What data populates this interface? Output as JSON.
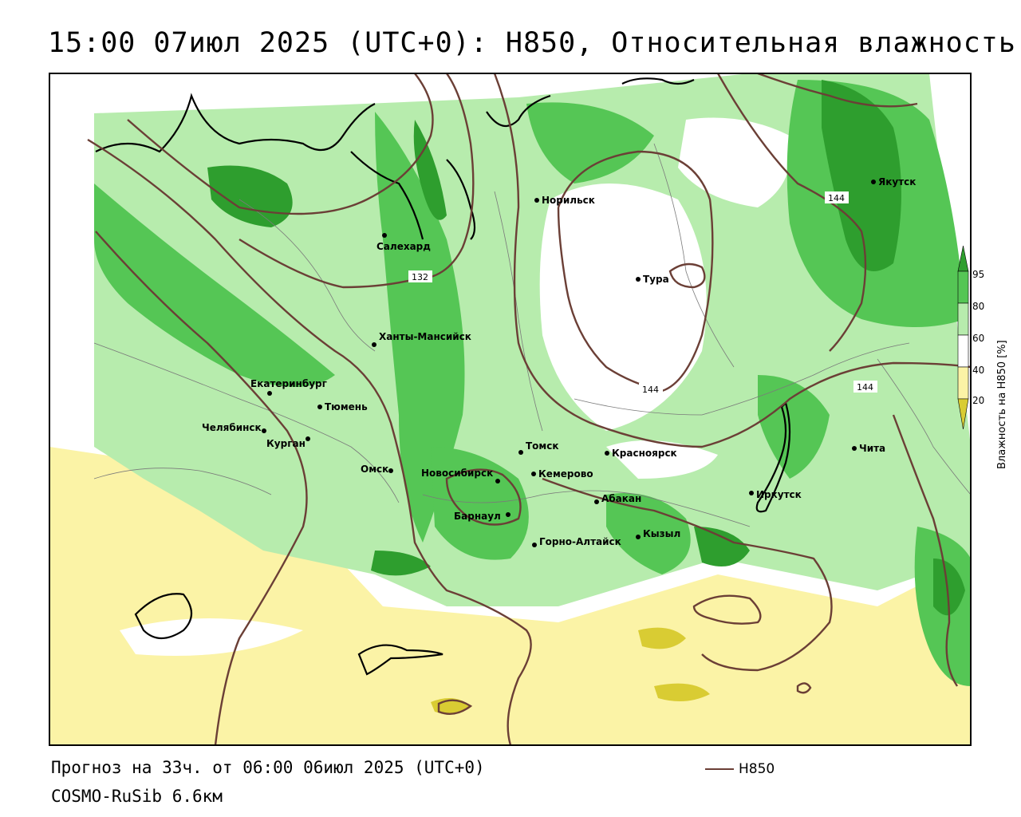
{
  "title": "15:00 07июл 2025 (UTC+0): H850, Относительная влажность",
  "footer": {
    "forecast": "Прогноз на 33ч. от 06:00 06июл 2025 (UTC+0)",
    "model": "COSMO-RuSib 6.6км"
  },
  "legend": {
    "line_label": "H850",
    "line_color": "#6b3f36"
  },
  "colorbar": {
    "title": "Влажность на H850 [%]",
    "ticks": [
      "95",
      "80",
      "60",
      "40",
      "20"
    ],
    "colors": {
      "c95": "#2e9e2e",
      "c80": "#55c655",
      "c60": "#b7ecad",
      "c40": "#ffffff",
      "c20": "#fbf3a6",
      "cdry": "#d9cc33"
    }
  },
  "contour_labels": [
    "132",
    "144",
    "144",
    "144"
  ],
  "cities": [
    {
      "id": "salekhard",
      "name": "Салехард"
    },
    {
      "id": "norilsk",
      "name": "Норильск"
    },
    {
      "id": "yakutsk",
      "name": "Якутск"
    },
    {
      "id": "tura",
      "name": "Тура"
    },
    {
      "id": "khanty",
      "name": "Ханты-Мансийск"
    },
    {
      "id": "ekb",
      "name": "Екатеринбург"
    },
    {
      "id": "tyumen",
      "name": "Тюмень"
    },
    {
      "id": "chelyabinsk",
      "name": "Челябинск"
    },
    {
      "id": "kurgan",
      "name": "Курган"
    },
    {
      "id": "omsk",
      "name": "Омск"
    },
    {
      "id": "novosibirsk",
      "name": "Новосибирск"
    },
    {
      "id": "barnaul",
      "name": "Барнаул"
    },
    {
      "id": "tomsk",
      "name": "Томск"
    },
    {
      "id": "kemerovo",
      "name": "Кемерово"
    },
    {
      "id": "krasnoyarsk",
      "name": "Красноярск"
    },
    {
      "id": "abakan",
      "name": "Абакан"
    },
    {
      "id": "gorno",
      "name": "Горно-Алтайск"
    },
    {
      "id": "kyzyl",
      "name": "Кызыл"
    },
    {
      "id": "irkutsk",
      "name": "Иркутск"
    },
    {
      "id": "chita",
      "name": "Чита"
    }
  ]
}
